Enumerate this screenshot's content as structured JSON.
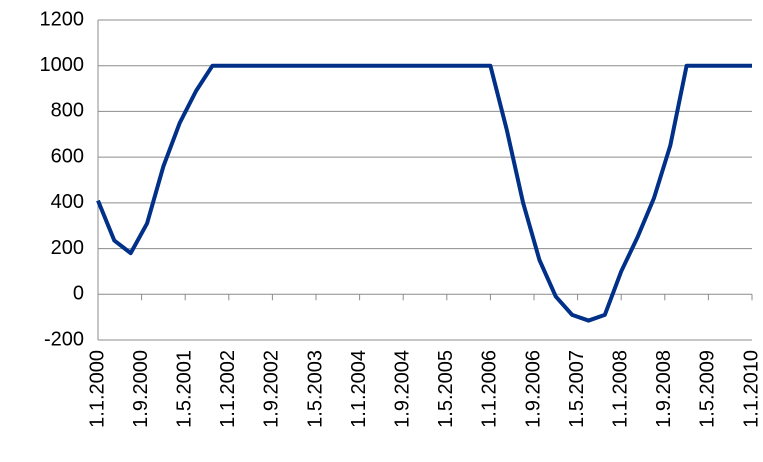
{
  "chart_data": {
    "type": "line",
    "x": [
      "1.1.2000",
      "1.4.2000",
      "1.7.2000",
      "1.10.2000",
      "1.1.2001",
      "1.4.2001",
      "1.7.2001",
      "1.10.2001",
      "1.1.2002",
      "1.4.2002",
      "1.7.2002",
      "1.10.2002",
      "1.1.2003",
      "1.4.2003",
      "1.7.2003",
      "1.10.2003",
      "1.1.2004",
      "1.4.2004",
      "1.7.2004",
      "1.10.2004",
      "1.1.2005",
      "1.4.2005",
      "1.7.2005",
      "1.10.2005",
      "1.1.2006",
      "1.4.2006",
      "1.7.2006",
      "1.10.2006",
      "1.1.2007",
      "1.4.2007",
      "1.7.2007",
      "1.10.2007",
      "1.1.2008",
      "1.4.2008",
      "1.7.2008",
      "1.10.2008",
      "1.1.2009",
      "1.4.2009",
      "1.7.2009",
      "1.10.2009",
      "1.1.2010"
    ],
    "series": [
      {
        "color": "#003087",
        "values": [
          410,
          235,
          180,
          310,
          560,
          750,
          890,
          1000,
          1000,
          1000,
          1000,
          1000,
          1000,
          1000,
          1000,
          1000,
          1000,
          1000,
          1000,
          1000,
          1000,
          1000,
          1000,
          1000,
          1000,
          720,
          400,
          150,
          -10,
          -90,
          -115,
          -90,
          100,
          250,
          420,
          650,
          1000,
          1000,
          1000,
          1000,
          1000
        ]
      }
    ],
    "xlim": [
      "1.1.2000",
      "1.1.2010"
    ],
    "xticks": [
      "1.1.2000",
      "1.9.2000",
      "1.5.2001",
      "1.1.2002",
      "1.9.2002",
      "1.5.2003",
      "1.1.2004",
      "1.9.2004",
      "1.5.2005",
      "1.1.2006",
      "1.9.2006",
      "1.5.2007",
      "1.1.2008",
      "1.9.2008",
      "1.5.2009",
      "1.1.2010"
    ],
    "ylim": [
      -200,
      1200
    ],
    "yticks": [
      -200,
      0,
      200,
      400,
      600,
      800,
      1000,
      1200
    ],
    "grid": true
  }
}
